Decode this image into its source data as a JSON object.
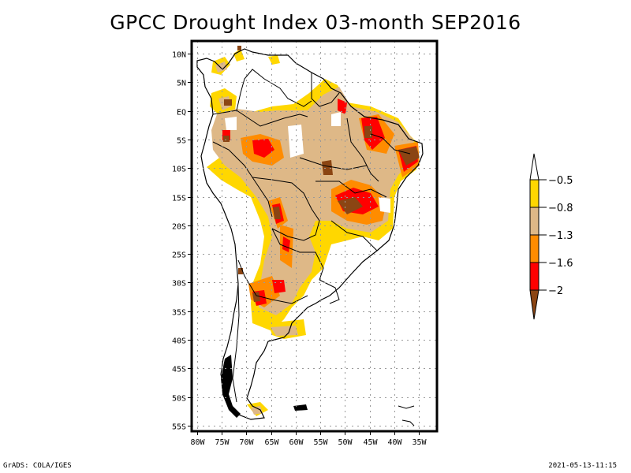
{
  "title": "GPCC Drought Index 03-month SEP2016",
  "colors": {
    "none": "#ffffff",
    "yellow": "#ffd700",
    "tan": "#deb887",
    "orange": "#ff8c00",
    "red": "#ff0000",
    "brown": "#8b4513"
  },
  "map": {
    "lat_ticks": [
      "10N",
      "5N",
      "EQ",
      "5S",
      "10S",
      "15S",
      "20S",
      "25S",
      "30S",
      "35S",
      "40S",
      "45S",
      "50S",
      "55S"
    ],
    "lat_values": [
      10,
      5,
      0,
      -5,
      -10,
      -15,
      -20,
      -25,
      -30,
      -35,
      -40,
      -45,
      -50,
      -55
    ],
    "lon_ticks": [
      "80W",
      "75W",
      "70W",
      "65W",
      "60W",
      "55W",
      "50W",
      "45W",
      "40W",
      "35W"
    ],
    "lon_values": [
      -80,
      -75,
      -70,
      -65,
      -60,
      -55,
      -50,
      -45,
      -40,
      -35
    ],
    "extent": {
      "lon_min": -81,
      "lon_max": -31,
      "lat_min": -56,
      "lat_max": 12
    }
  },
  "legend": {
    "labels": [
      "-0.5",
      "-0.8",
      "-1.3",
      "-1.6",
      "-2"
    ],
    "bins": [
      {
        "range": "> -0.5",
        "color": "#ffffff"
      },
      {
        "range": "-0.8 to -0.5",
        "color": "#ffd700"
      },
      {
        "range": "-1.3 to -0.8",
        "color": "#deb887"
      },
      {
        "range": "-1.6 to -1.3",
        "color": "#ff8c00"
      },
      {
        "range": "-2 to -1.6",
        "color": "#ff0000"
      },
      {
        "range": "< -2",
        "color": "#8b4513"
      }
    ]
  },
  "footer": {
    "left": "GrADS: COLA/IGES",
    "right": "2021-05-13-11:15"
  }
}
